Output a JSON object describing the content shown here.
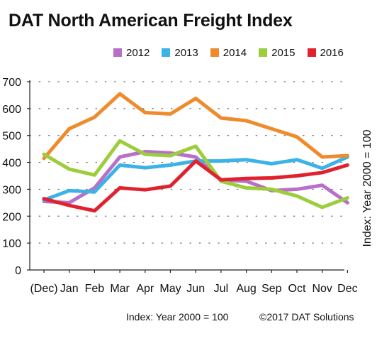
{
  "chart_data": {
    "type": "line",
    "title": "DAT North American Freight Index",
    "xlabel": "",
    "ylabel": "Index: Year 2000 = 100",
    "categories": [
      "(Dec)",
      "Jan",
      "Feb",
      "Mar",
      "Apr",
      "May",
      "Jun",
      "Jul",
      "Aug",
      "Sep",
      "Oct",
      "Nov",
      "Dec"
    ],
    "ylim": [
      0,
      700
    ],
    "yticks": [
      "0",
      "100",
      "200",
      "300",
      "400",
      "500",
      "600",
      "700"
    ],
    "grid": "horizontal dotted",
    "legend_position": "top",
    "series": [
      {
        "name": "2012",
        "color": "#b86fc7",
        "values": [
          255,
          250,
          305,
          420,
          440,
          435,
          420,
          335,
          330,
          295,
          300,
          315,
          250
        ]
      },
      {
        "name": "2013",
        "color": "#3cb3e6",
        "values": [
          260,
          295,
          290,
          390,
          380,
          390,
          405,
          405,
          410,
          395,
          410,
          378,
          420
        ]
      },
      {
        "name": "2014",
        "color": "#ee8b2d",
        "values": [
          415,
          525,
          568,
          655,
          585,
          580,
          638,
          565,
          555,
          525,
          495,
          420,
          425
        ]
      },
      {
        "name": "2015",
        "color": "#9ccd3c",
        "values": [
          430,
          375,
          353,
          480,
          430,
          425,
          460,
          330,
          305,
          300,
          275,
          233,
          268
        ]
      },
      {
        "name": "2016",
        "color": "#e0222e",
        "values": [
          265,
          240,
          220,
          305,
          298,
          312,
          405,
          335,
          340,
          342,
          350,
          362,
          390
        ]
      }
    ]
  },
  "footer": {
    "index_note": "Index: Year 2000 = 100",
    "copyright": "©2017 DAT Solutions"
  }
}
